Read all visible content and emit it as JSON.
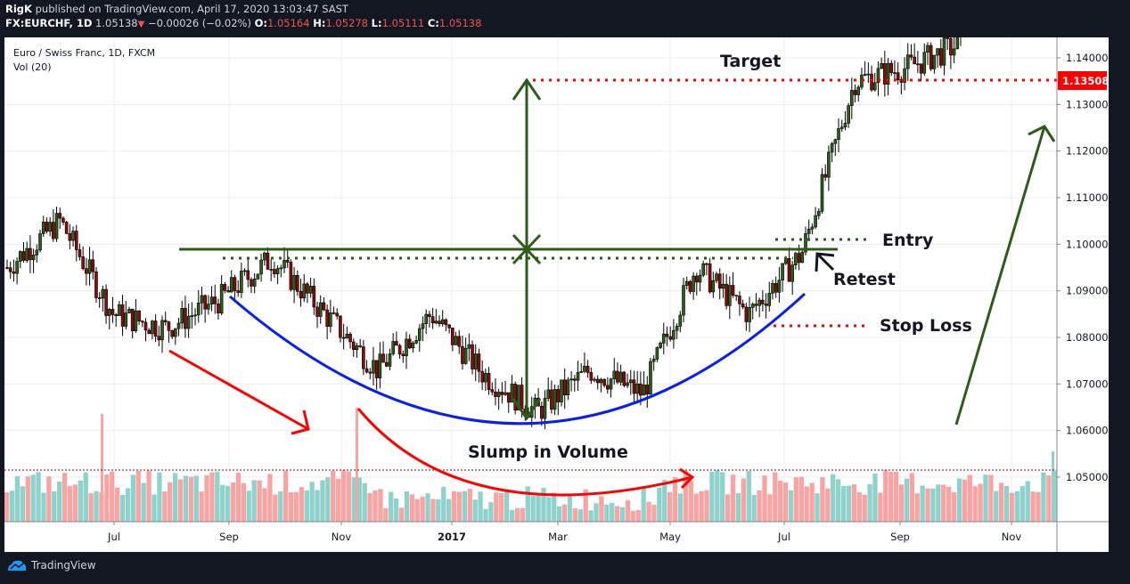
{
  "header": {
    "author": "RigK",
    "published_text": "published on TradingView.com, April 17, 2020 13:03:47 SAST",
    "symbol": "FX:EURCHF, 1D",
    "last_price": "1.05138",
    "change": "−0.00026 (−0.02%)",
    "open_label": "O:",
    "open": "1.05164",
    "high_label": "H:",
    "high": "1.05278",
    "low_label": "L:",
    "low": "1.05111",
    "close_label": "C:",
    "close": "1.05138"
  },
  "legend": {
    "title": "Euro / Swiss Franc, 1D, FXCM",
    "volume": "Vol (20)"
  },
  "footer": {
    "brand": "TradingView"
  },
  "colors": {
    "background": "#131722",
    "panel": "#ffffff",
    "up_candle": "#2e5e1a",
    "down_candle": "#8b0a0a",
    "vol_up": "#8fd1cb",
    "vol_down": "#f6a4a4",
    "target_line": "#ff0000",
    "neckline": "#2e5a1c",
    "cup_curve": "#0a1ef0",
    "volume_arrow": "#ff0000",
    "price_label_bg": "#ff0000"
  },
  "annotations": {
    "target": "Target",
    "entry": "Entry",
    "retest": "Retest",
    "stop_loss": "Stop Loss",
    "slump": "Slump in Volume"
  },
  "chart_data": {
    "type": "candlestick",
    "title": "Euro / Swiss Franc, 1D, FXCM",
    "symbol": "FX:EURCHF",
    "timeframe": "1D",
    "xlabel": "",
    "ylabel": "",
    "x_ticks": [
      "Jul",
      "Sep",
      "Nov",
      "2017",
      "Mar",
      "May",
      "Jul",
      "Sep",
      "Nov"
    ],
    "y_ticks": [
      "1.14000",
      "1.13000",
      "1.12000",
      "1.11000",
      "1.10000",
      "1.09000",
      "1.08000",
      "1.07000",
      "1.06000",
      "1.05000"
    ],
    "ylim": [
      1.043,
      1.145
    ],
    "current_price_label": "1.13508",
    "grid": true,
    "approx_close_path": {
      "x": [
        "2016-May",
        "2016-Jun",
        "2016-late-Jun",
        "2016-Jul",
        "2016-Aug",
        "2016-Sep",
        "2016-Oct",
        "2016-Nov",
        "2016-Dec",
        "2017-Jan",
        "2017-Feb",
        "2017-Mar",
        "2017-Apr",
        "2017-May",
        "2017-Jun",
        "2017-Jul",
        "2017-Aug",
        "2017-Sep",
        "2017-Oct"
      ],
      "values": [
        1.095,
        1.105,
        1.085,
        1.082,
        1.088,
        1.097,
        1.085,
        1.073,
        1.085,
        1.072,
        1.064,
        1.073,
        1.068,
        1.095,
        1.085,
        1.098,
        1.135,
        1.138,
        1.143
      ]
    },
    "levels": {
      "neckline": 1.0988,
      "neckline_dotted": 1.0969,
      "target": 1.1351,
      "entry": 1.101,
      "stop_loss": 1.0822,
      "cup_bottom": 1.0622
    },
    "volume_series_note": "Vol (20) histogram; red/teal bars, higher in mid-2016, slumping toward Feb 2017 then recovering",
    "annotations": [
      "Target",
      "Entry",
      "Retest",
      "Stop Loss",
      "Slump in Volume"
    ]
  }
}
